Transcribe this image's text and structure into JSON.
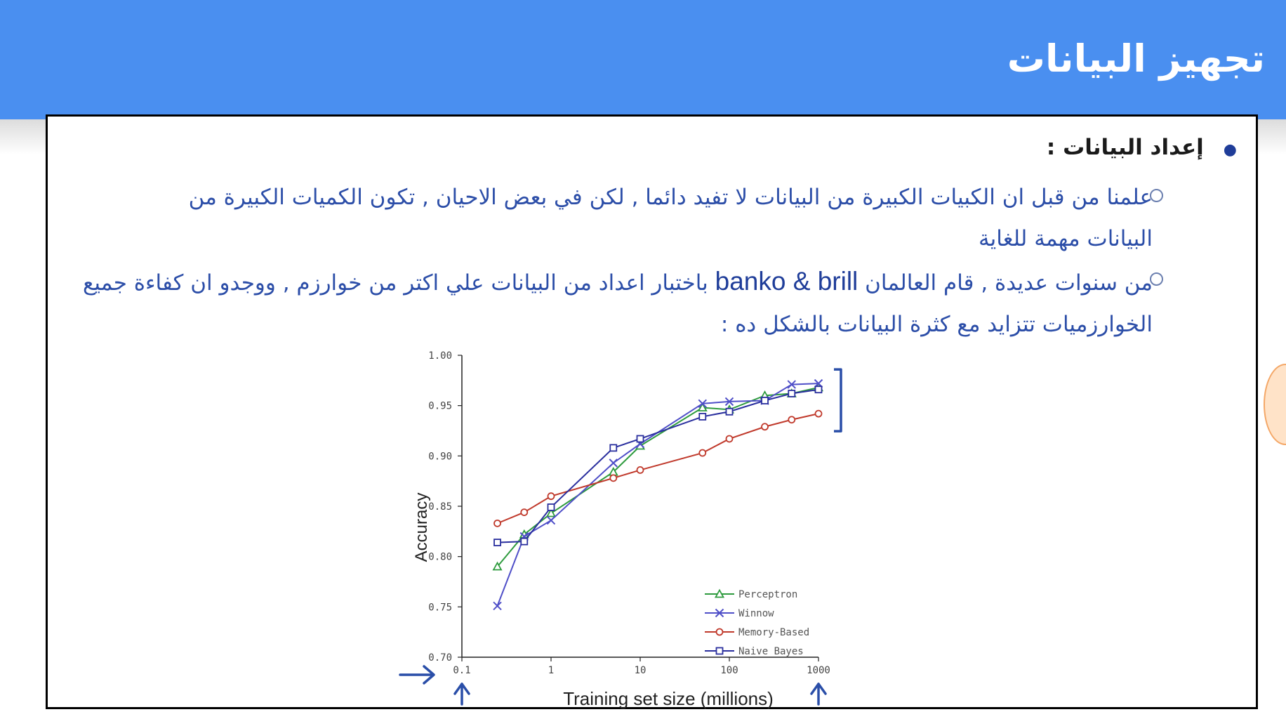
{
  "slide": {
    "title": "تجهيز البيانات"
  },
  "content": {
    "heading": "إعداد البيانات :",
    "point1": "علمنا من قبل ان الكبيات الكبيرة من البيانات لا تفيد دائما , لكن في بعض الاحيان , تكون الكميات الكبيرة من البيانات مهمة للغاية",
    "point2_part1": "من سنوات عديدة , قام العالمان",
    "point2_names": "banko & brill",
    "point2_part2": "باختبار اعداد من البيانات علي اكتر من خوارزم , ووجدو ان كفاءة جميع الخوارزميات تتزايد مع كثرة البيانات بالشكل ده :"
  },
  "chart_data": {
    "type": "line",
    "title": "",
    "xlabel": "Training set size (millions)",
    "ylabel": "Accuracy",
    "xscale": "log",
    "xlim": [
      0.1,
      1000
    ],
    "ylim": [
      0.7,
      1.0
    ],
    "xticks": [
      "0.1",
      "1",
      "10",
      "100",
      "1000"
    ],
    "yticks": [
      "0.70",
      "0.75",
      "0.80",
      "0.85",
      "0.90",
      "0.95",
      "1.00"
    ],
    "grid": false,
    "legend_position": "bottom-right",
    "series": [
      {
        "name": "Perceptron",
        "color": "#2e9b3e",
        "marker": "triangle",
        "x": [
          0.25,
          0.5,
          1,
          5,
          10,
          50,
          100,
          250,
          500,
          1000
        ],
        "y": [
          0.79,
          0.822,
          0.843,
          0.884,
          0.91,
          0.948,
          0.946,
          0.96,
          0.962,
          0.968
        ]
      },
      {
        "name": "Winnow",
        "color": "#4f4fc8",
        "marker": "x",
        "x": [
          0.25,
          0.5,
          1,
          5,
          10,
          50,
          100,
          250,
          500,
          1000
        ],
        "y": [
          0.751,
          0.82,
          0.836,
          0.893,
          0.912,
          0.952,
          0.954,
          0.955,
          0.971,
          0.972
        ]
      },
      {
        "name": "Memory-Based",
        "color": "#c0392b",
        "marker": "circle",
        "x": [
          0.25,
          0.5,
          1,
          5,
          10,
          50,
          100,
          250,
          500,
          1000
        ],
        "y": [
          0.833,
          0.844,
          0.86,
          0.878,
          0.886,
          0.903,
          0.917,
          0.929,
          0.936,
          0.942
        ]
      },
      {
        "name": "Naive Bayes",
        "color": "#2a2f9e",
        "marker": "square",
        "x": [
          0.25,
          0.5,
          1,
          5,
          10,
          50,
          100,
          250,
          500,
          1000
        ],
        "y": [
          0.814,
          0.815,
          0.849,
          0.908,
          0.917,
          0.939,
          0.944,
          0.955,
          0.962,
          0.966
        ]
      }
    ],
    "annotations": {
      "ink_color": "#2a4ea8",
      "bracket_range": [
        0.942,
        0.972
      ],
      "arrow_x_values": [
        0.1,
        1000
      ]
    }
  }
}
